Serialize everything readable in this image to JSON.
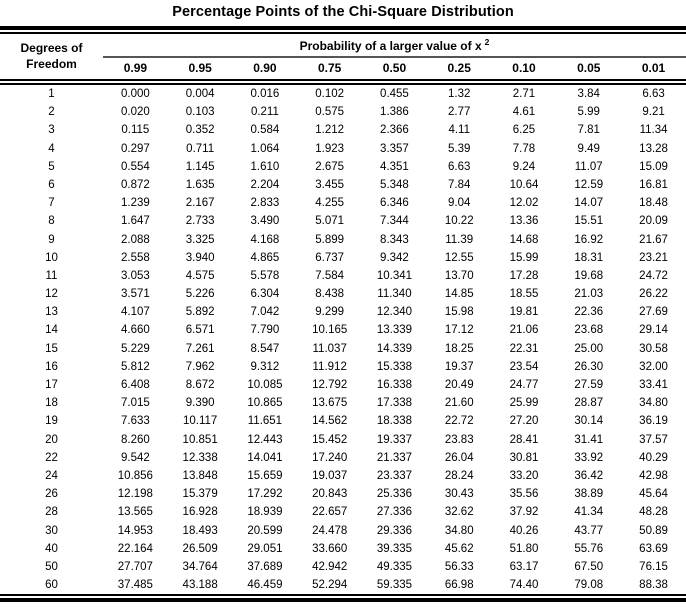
{
  "title": "Percentage Points of the Chi-Square Distribution",
  "colors": {
    "text": "#000000",
    "rules": "#000000",
    "probability_underline": "#555555",
    "background": "#ffffff"
  },
  "table": {
    "df_header_line1": "Degrees of",
    "df_header_line2": "Freedom",
    "prob_header": "Probability of a larger value of x",
    "prob_header_sup": "2",
    "columns": [
      "0.99",
      "0.95",
      "0.90",
      "0.75",
      "0.50",
      "0.25",
      "0.10",
      "0.05",
      "0.01"
    ],
    "rows": [
      {
        "df": "1",
        "values": [
          "0.000",
          "0.004",
          "0.016",
          "0.102",
          "0.455",
          "1.32",
          "2.71",
          "3.84",
          "6.63"
        ]
      },
      {
        "df": "2",
        "values": [
          "0.020",
          "0.103",
          "0.211",
          "0.575",
          "1.386",
          "2.77",
          "4.61",
          "5.99",
          "9.21"
        ]
      },
      {
        "df": "3",
        "values": [
          "0.115",
          "0.352",
          "0.584",
          "1.212",
          "2.366",
          "4.11",
          "6.25",
          "7.81",
          "11.34"
        ]
      },
      {
        "df": "4",
        "values": [
          "0.297",
          "0.711",
          "1.064",
          "1.923",
          "3.357",
          "5.39",
          "7.78",
          "9.49",
          "13.28"
        ]
      },
      {
        "df": "5",
        "values": [
          "0.554",
          "1.145",
          "1.610",
          "2.675",
          "4.351",
          "6.63",
          "9.24",
          "11.07",
          "15.09"
        ]
      },
      {
        "df": "6",
        "values": [
          "0.872",
          "1.635",
          "2.204",
          "3.455",
          "5.348",
          "7.84",
          "10.64",
          "12.59",
          "16.81"
        ]
      },
      {
        "df": "7",
        "values": [
          "1.239",
          "2.167",
          "2.833",
          "4.255",
          "6.346",
          "9.04",
          "12.02",
          "14.07",
          "18.48"
        ]
      },
      {
        "df": "8",
        "values": [
          "1.647",
          "2.733",
          "3.490",
          "5.071",
          "7.344",
          "10.22",
          "13.36",
          "15.51",
          "20.09"
        ]
      },
      {
        "df": "9",
        "values": [
          "2.088",
          "3.325",
          "4.168",
          "5.899",
          "8.343",
          "11.39",
          "14.68",
          "16.92",
          "21.67"
        ]
      },
      {
        "df": "10",
        "values": [
          "2.558",
          "3.940",
          "4.865",
          "6.737",
          "9.342",
          "12.55",
          "15.99",
          "18.31",
          "23.21"
        ]
      },
      {
        "df": "11",
        "values": [
          "3.053",
          "4.575",
          "5.578",
          "7.584",
          "10.341",
          "13.70",
          "17.28",
          "19.68",
          "24.72"
        ]
      },
      {
        "df": "12",
        "values": [
          "3.571",
          "5.226",
          "6.304",
          "8.438",
          "11.340",
          "14.85",
          "18.55",
          "21.03",
          "26.22"
        ]
      },
      {
        "df": "13",
        "values": [
          "4.107",
          "5.892",
          "7.042",
          "9.299",
          "12.340",
          "15.98",
          "19.81",
          "22.36",
          "27.69"
        ]
      },
      {
        "df": "14",
        "values": [
          "4.660",
          "6.571",
          "7.790",
          "10.165",
          "13.339",
          "17.12",
          "21.06",
          "23.68",
          "29.14"
        ]
      },
      {
        "df": "15",
        "values": [
          "5.229",
          "7.261",
          "8.547",
          "11.037",
          "14.339",
          "18.25",
          "22.31",
          "25.00",
          "30.58"
        ]
      },
      {
        "df": "16",
        "values": [
          "5.812",
          "7.962",
          "9.312",
          "11.912",
          "15.338",
          "19.37",
          "23.54",
          "26.30",
          "32.00"
        ]
      },
      {
        "df": "17",
        "values": [
          "6.408",
          "8.672",
          "10.085",
          "12.792",
          "16.338",
          "20.49",
          "24.77",
          "27.59",
          "33.41"
        ]
      },
      {
        "df": "18",
        "values": [
          "7.015",
          "9.390",
          "10.865",
          "13.675",
          "17.338",
          "21.60",
          "25.99",
          "28.87",
          "34.80"
        ]
      },
      {
        "df": "19",
        "values": [
          "7.633",
          "10.117",
          "11.651",
          "14.562",
          "18.338",
          "22.72",
          "27.20",
          "30.14",
          "36.19"
        ]
      },
      {
        "df": "20",
        "values": [
          "8.260",
          "10.851",
          "12.443",
          "15.452",
          "19.337",
          "23.83",
          "28.41",
          "31.41",
          "37.57"
        ]
      },
      {
        "df": "22",
        "values": [
          "9.542",
          "12.338",
          "14.041",
          "17.240",
          "21.337",
          "26.04",
          "30.81",
          "33.92",
          "40.29"
        ]
      },
      {
        "df": "24",
        "values": [
          "10.856",
          "13.848",
          "15.659",
          "19.037",
          "23.337",
          "28.24",
          "33.20",
          "36.42",
          "42.98"
        ]
      },
      {
        "df": "26",
        "values": [
          "12.198",
          "15.379",
          "17.292",
          "20.843",
          "25.336",
          "30.43",
          "35.56",
          "38.89",
          "45.64"
        ]
      },
      {
        "df": "28",
        "values": [
          "13.565",
          "16.928",
          "18.939",
          "22.657",
          "27.336",
          "32.62",
          "37.92",
          "41.34",
          "48.28"
        ]
      },
      {
        "df": "30",
        "values": [
          "14.953",
          "18.493",
          "20.599",
          "24.478",
          "29.336",
          "34.80",
          "40.26",
          "43.77",
          "50.89"
        ]
      },
      {
        "df": "40",
        "values": [
          "22.164",
          "26.509",
          "29.051",
          "33.660",
          "39.335",
          "45.62",
          "51.80",
          "55.76",
          "63.69"
        ]
      },
      {
        "df": "50",
        "values": [
          "27.707",
          "34.764",
          "37.689",
          "42.942",
          "49.335",
          "56.33",
          "63.17",
          "67.50",
          "76.15"
        ]
      },
      {
        "df": "60",
        "values": [
          "37.485",
          "43.188",
          "46.459",
          "52.294",
          "59.335",
          "66.98",
          "74.40",
          "79.08",
          "88.38"
        ]
      }
    ]
  }
}
